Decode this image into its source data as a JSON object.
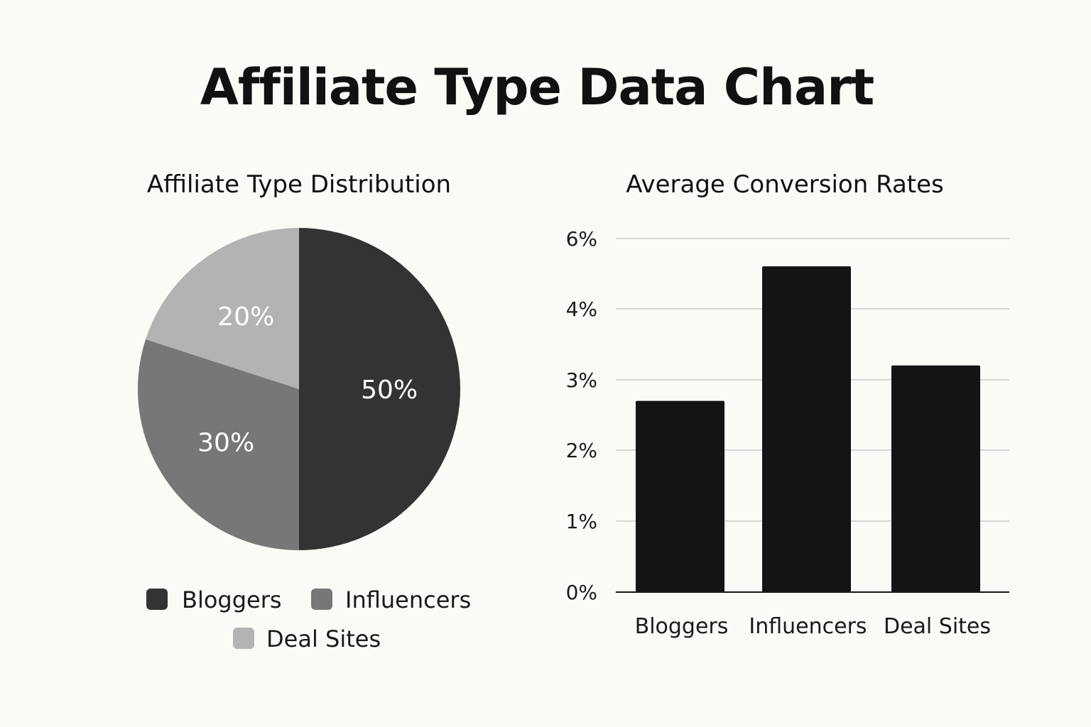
{
  "title": "Affiliate Type Data Chart",
  "chart_data": [
    {
      "type": "pie",
      "title": "Affiliate Type Distribution",
      "slices": [
        {
          "label": "Bloggers",
          "value": 50,
          "display": "50%",
          "color": "#333333"
        },
        {
          "label": "Influencers",
          "value": 30,
          "display": "30%",
          "color": "#777777"
        },
        {
          "label": "Deal Sites",
          "value": 20,
          "display": "20%",
          "color": "#b3b3b3"
        }
      ],
      "legend": "bottom"
    },
    {
      "type": "bar",
      "title": "Average Conversion Rates",
      "categories": [
        "Bloggers",
        "Influencers",
        "Deal Sites"
      ],
      "values": [
        2.7,
        4.6,
        3.2
      ],
      "y_ticks": [
        "0%",
        "1%",
        "2%",
        "3%",
        "4%",
        "6%"
      ],
      "bar_color": "#141414",
      "grid": true
    }
  ]
}
